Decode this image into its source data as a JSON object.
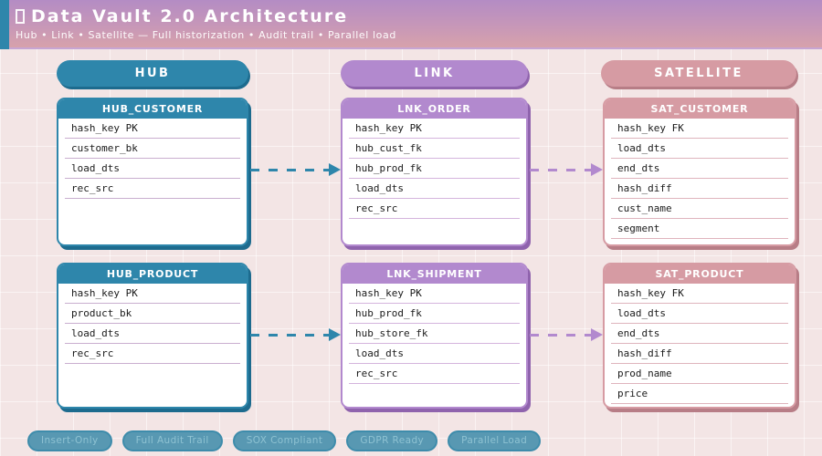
{
  "header": {
    "title": "Data Vault 2.0 Architecture",
    "subtitle": "Hub • Link • Satellite — Full historization • Audit trail • Parallel load"
  },
  "lanes": [
    {
      "label": "HUB"
    },
    {
      "label": "LINK"
    },
    {
      "label": "SATELLITE"
    }
  ],
  "tables": [
    {
      "name": "HUB_CUSTOMER",
      "type": "hub",
      "fields": [
        "hash_key PK",
        "customer_bk",
        "load_dts",
        "rec_src"
      ]
    },
    {
      "name": "LNK_ORDER",
      "type": "link",
      "fields": [
        "hash_key PK",
        "hub_cust_fk",
        "hub_prod_fk",
        "load_dts",
        "rec_src"
      ]
    },
    {
      "name": "SAT_CUSTOMER",
      "type": "satellite",
      "fields": [
        "hash_key FK",
        "load_dts",
        "end_dts",
        "hash_diff",
        "cust_name",
        "segment"
      ]
    },
    {
      "name": "HUB_PRODUCT",
      "type": "hub",
      "fields": [
        "hash_key PK",
        "product_bk",
        "load_dts",
        "rec_src"
      ]
    },
    {
      "name": "LNK_SHIPMENT",
      "type": "link",
      "fields": [
        "hash_key PK",
        "hub_prod_fk",
        "hub_store_fk",
        "load_dts",
        "rec_src"
      ]
    },
    {
      "name": "SAT_PRODUCT",
      "type": "satellite",
      "fields": [
        "hash_key FK",
        "load_dts",
        "end_dts",
        "hash_diff",
        "prod_name",
        "price"
      ]
    }
  ],
  "badges": [
    "Insert-Only",
    "Full Audit Trail",
    "SOX Compliant",
    "GDPR Ready",
    "Parallel Load"
  ],
  "colors": {
    "hub": "#2e86ab",
    "hub_dark": "#1d6b8e",
    "link": "#b289ce",
    "link_dark": "#8f63ad",
    "satellite": "#d69ba3",
    "satellite_dark": "#b77d86",
    "header_gradient_top": "#b48cc4",
    "header_gradient_bottom": "#d7a2ab",
    "background": "#f3e5e5"
  }
}
